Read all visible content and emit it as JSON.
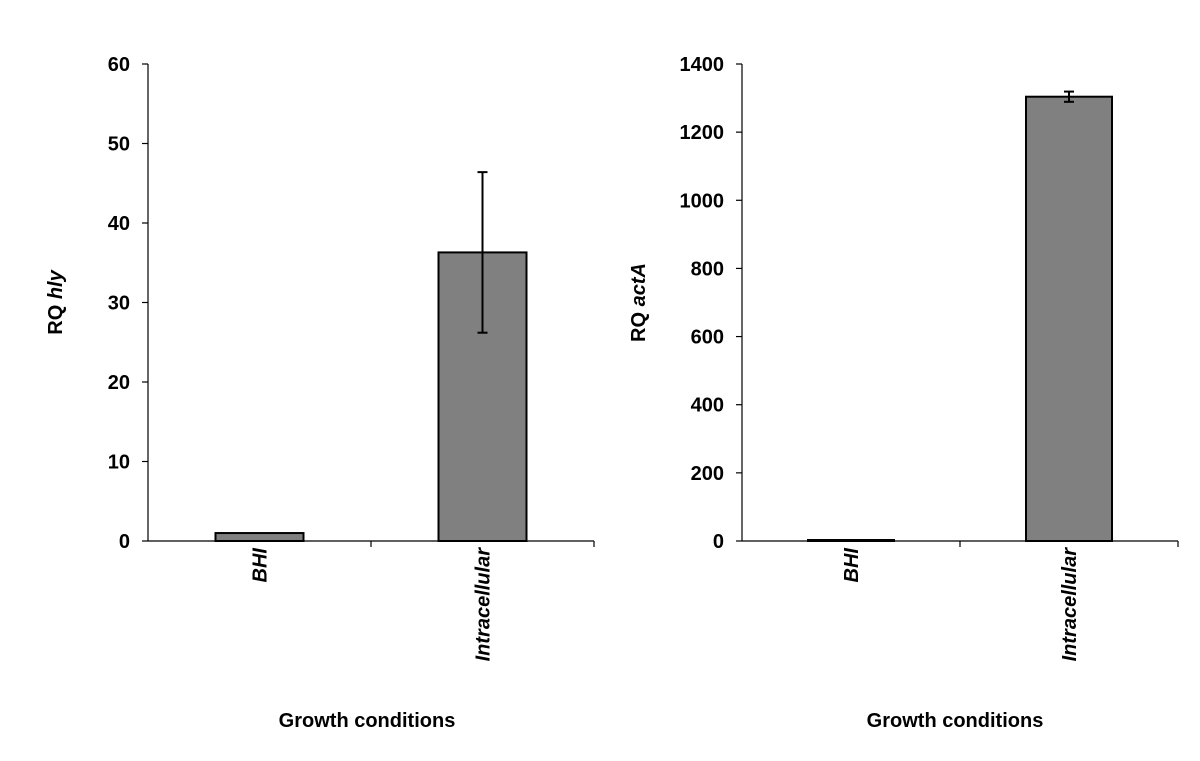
{
  "chart_data": [
    {
      "type": "bar",
      "categories": [
        "BHI",
        "Intracellular"
      ],
      "values": [
        1,
        36.3
      ],
      "error": [
        0.1,
        10.1
      ],
      "ylabel_prefix": "RQ",
      "ylabel_gene": "hly",
      "xlabel": "Growth conditions",
      "ylim": [
        0,
        60
      ],
      "yticks": [
        0,
        10,
        20,
        30,
        40,
        50,
        60
      ],
      "grid": false
    },
    {
      "type": "bar",
      "categories": [
        "BHI",
        "Intracellular"
      ],
      "values": [
        1,
        1304
      ],
      "error": [
        0.3,
        15
      ],
      "ylabel_prefix": "RQ",
      "ylabel_gene": "actA",
      "xlabel": "Growth conditions",
      "ylim": [
        0,
        1400
      ],
      "yticks": [
        0,
        200,
        400,
        600,
        800,
        1000,
        1200,
        1400
      ],
      "grid": false
    }
  ],
  "colors": {
    "bar_fill": "#808080",
    "bar_stroke": "#000000",
    "axis": "#000000"
  }
}
